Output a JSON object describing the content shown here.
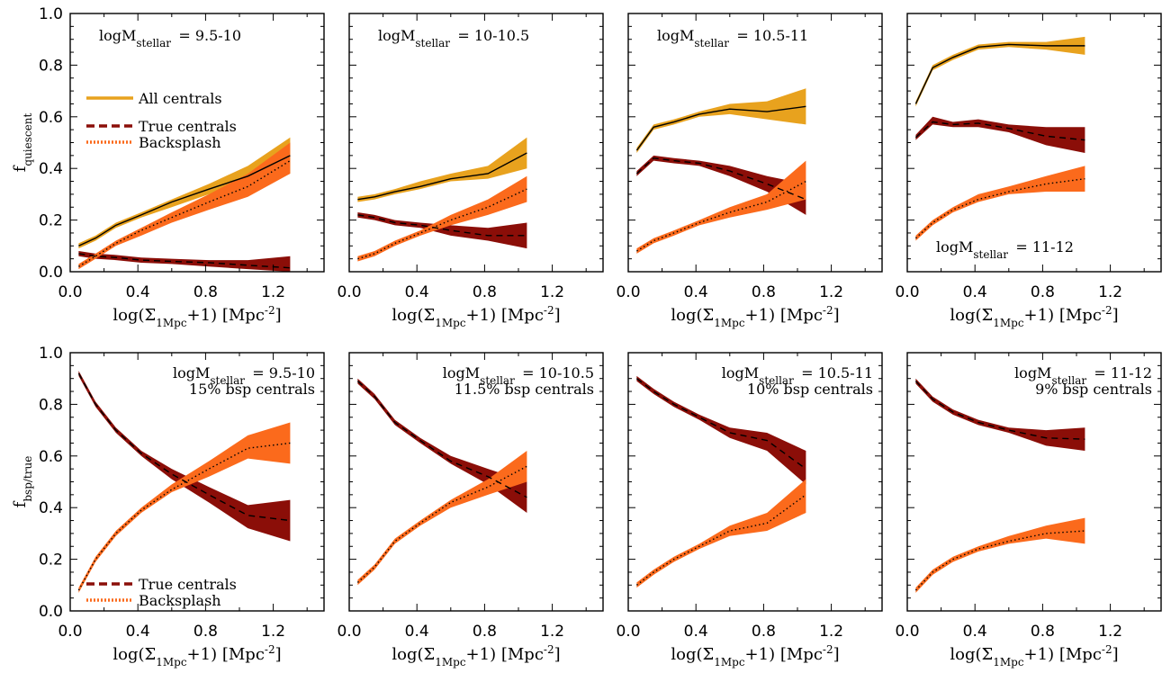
{
  "chart_data": [
    {
      "type": "area",
      "row": 0,
      "col": 0,
      "xlim": [
        0,
        1.5
      ],
      "ylim": [
        0,
        1.0
      ],
      "xticks": [
        "0.0",
        "0.4",
        "0.8",
        "1.2"
      ],
      "yticks": [
        "0.0",
        "0.2",
        "0.4",
        "0.6",
        "0.8",
        "1.0"
      ],
      "xlabel": "log(Σ1Mpc+1) [Mpc-2]",
      "ylabel": "fquiescent",
      "annotations": [
        "logMstellar = 9.5-10"
      ],
      "legend": [
        "All centrals",
        "True centrals",
        "Backsplash"
      ],
      "series": [
        {
          "name": "All centrals",
          "x": [
            0.05,
            0.15,
            0.27,
            0.42,
            0.6,
            0.82,
            1.05,
            1.3
          ],
          "y": [
            0.1,
            0.13,
            0.18,
            0.22,
            0.27,
            0.32,
            0.37,
            0.45
          ],
          "lo": [
            0.09,
            0.12,
            0.17,
            0.21,
            0.25,
            0.3,
            0.34,
            0.38
          ],
          "hi": [
            0.11,
            0.14,
            0.19,
            0.23,
            0.28,
            0.34,
            0.41,
            0.52
          ]
        },
        {
          "name": "True centrals",
          "x": [
            0.05,
            0.15,
            0.27,
            0.42,
            0.6,
            0.82,
            1.05,
            1.3
          ],
          "y": [
            0.07,
            0.06,
            0.055,
            0.045,
            0.04,
            0.035,
            0.025,
            0.015
          ],
          "lo": [
            0.06,
            0.05,
            0.045,
            0.035,
            0.03,
            0.02,
            0.01,
            0.0
          ],
          "hi": [
            0.08,
            0.07,
            0.065,
            0.055,
            0.05,
            0.045,
            0.045,
            0.06
          ]
        },
        {
          "name": "Backsplash",
          "x": [
            0.05,
            0.15,
            0.27,
            0.42,
            0.6,
            0.82,
            1.05,
            1.3
          ],
          "y": [
            0.02,
            0.06,
            0.11,
            0.16,
            0.21,
            0.27,
            0.33,
            0.43
          ],
          "lo": [
            0.01,
            0.05,
            0.1,
            0.14,
            0.19,
            0.24,
            0.29,
            0.38
          ],
          "hi": [
            0.03,
            0.07,
            0.12,
            0.17,
            0.23,
            0.3,
            0.38,
            0.5
          ]
        }
      ]
    },
    {
      "type": "area",
      "row": 0,
      "col": 1,
      "xlim": [
        0,
        1.5
      ],
      "ylim": [
        0,
        1.0
      ],
      "xticks": [
        "0.0",
        "0.4",
        "0.8",
        "1.2"
      ],
      "xlabel": "log(Σ1Mpc+1) [Mpc-2]",
      "annotations": [
        "logMstellar = 10-10.5"
      ],
      "series": [
        {
          "name": "All centrals",
          "x": [
            0.05,
            0.15,
            0.27,
            0.42,
            0.6,
            0.82,
            1.05
          ],
          "y": [
            0.28,
            0.29,
            0.31,
            0.33,
            0.36,
            0.38,
            0.46
          ],
          "lo": [
            0.27,
            0.28,
            0.3,
            0.32,
            0.35,
            0.36,
            0.4
          ],
          "hi": [
            0.29,
            0.3,
            0.32,
            0.35,
            0.38,
            0.41,
            0.52
          ]
        },
        {
          "name": "True centrals",
          "x": [
            0.05,
            0.15,
            0.27,
            0.42,
            0.6,
            0.82,
            1.05
          ],
          "y": [
            0.22,
            0.21,
            0.19,
            0.18,
            0.16,
            0.14,
            0.14
          ],
          "lo": [
            0.21,
            0.2,
            0.18,
            0.17,
            0.14,
            0.12,
            0.09
          ],
          "hi": [
            0.23,
            0.22,
            0.2,
            0.19,
            0.18,
            0.17,
            0.19
          ]
        },
        {
          "name": "Backsplash",
          "x": [
            0.05,
            0.15,
            0.27,
            0.42,
            0.6,
            0.82,
            1.05
          ],
          "y": [
            0.05,
            0.07,
            0.11,
            0.15,
            0.2,
            0.25,
            0.32
          ],
          "lo": [
            0.04,
            0.06,
            0.1,
            0.14,
            0.18,
            0.22,
            0.27
          ],
          "hi": [
            0.06,
            0.08,
            0.12,
            0.16,
            0.22,
            0.28,
            0.37
          ]
        }
      ]
    },
    {
      "type": "area",
      "row": 0,
      "col": 2,
      "xlim": [
        0,
        1.5
      ],
      "ylim": [
        0,
        1.0
      ],
      "xticks": [
        "0.0",
        "0.4",
        "0.8",
        "1.2"
      ],
      "xlabel": "log(Σ1Mpc+1) [Mpc-2]",
      "annotations": [
        "logMstellar = 10.5-11"
      ],
      "series": [
        {
          "name": "All centrals",
          "x": [
            0.05,
            0.15,
            0.27,
            0.42,
            0.6,
            0.82,
            1.05
          ],
          "y": [
            0.47,
            0.56,
            0.58,
            0.61,
            0.63,
            0.62,
            0.64
          ],
          "lo": [
            0.46,
            0.55,
            0.57,
            0.6,
            0.61,
            0.59,
            0.57
          ],
          "hi": [
            0.48,
            0.57,
            0.59,
            0.62,
            0.65,
            0.66,
            0.71
          ]
        },
        {
          "name": "True centrals",
          "x": [
            0.05,
            0.15,
            0.27,
            0.42,
            0.6,
            0.82,
            1.05
          ],
          "y": [
            0.38,
            0.44,
            0.43,
            0.42,
            0.39,
            0.34,
            0.28
          ],
          "lo": [
            0.37,
            0.43,
            0.42,
            0.41,
            0.37,
            0.31,
            0.22
          ],
          "hi": [
            0.39,
            0.45,
            0.44,
            0.43,
            0.41,
            0.37,
            0.34
          ]
        },
        {
          "name": "Backsplash",
          "x": [
            0.05,
            0.15,
            0.27,
            0.42,
            0.6,
            0.82,
            1.05
          ],
          "y": [
            0.08,
            0.12,
            0.15,
            0.19,
            0.23,
            0.27,
            0.35
          ],
          "lo": [
            0.07,
            0.11,
            0.14,
            0.18,
            0.21,
            0.24,
            0.28
          ],
          "hi": [
            0.09,
            0.13,
            0.16,
            0.2,
            0.25,
            0.3,
            0.43
          ]
        }
      ]
    },
    {
      "type": "area",
      "row": 0,
      "col": 3,
      "xlim": [
        0,
        1.5
      ],
      "ylim": [
        0,
        1.0
      ],
      "xticks": [
        "0.0",
        "0.4",
        "0.8",
        "1.2"
      ],
      "xlabel": "log(Σ1Mpc+1) [Mpc-2]",
      "annotations": [
        "logMstellar = 11-12"
      ],
      "series": [
        {
          "name": "All centrals",
          "x": [
            0.05,
            0.15,
            0.27,
            0.42,
            0.6,
            0.82,
            1.05
          ],
          "y": [
            0.65,
            0.79,
            0.83,
            0.87,
            0.88,
            0.875,
            0.875
          ],
          "lo": [
            0.64,
            0.78,
            0.82,
            0.86,
            0.87,
            0.86,
            0.84
          ],
          "hi": [
            0.66,
            0.8,
            0.84,
            0.88,
            0.89,
            0.89,
            0.91
          ]
        },
        {
          "name": "True centrals",
          "x": [
            0.05,
            0.15,
            0.27,
            0.42,
            0.6,
            0.82,
            1.05
          ],
          "y": [
            0.52,
            0.58,
            0.57,
            0.575,
            0.555,
            0.525,
            0.51
          ],
          "lo": [
            0.51,
            0.57,
            0.56,
            0.56,
            0.54,
            0.49,
            0.46
          ],
          "hi": [
            0.53,
            0.6,
            0.58,
            0.59,
            0.57,
            0.56,
            0.56
          ]
        },
        {
          "name": "Backsplash",
          "x": [
            0.05,
            0.15,
            0.27,
            0.42,
            0.6,
            0.82,
            1.05
          ],
          "y": [
            0.13,
            0.19,
            0.24,
            0.28,
            0.31,
            0.34,
            0.36
          ],
          "lo": [
            0.12,
            0.18,
            0.23,
            0.27,
            0.3,
            0.31,
            0.31
          ],
          "hi": [
            0.14,
            0.2,
            0.25,
            0.3,
            0.33,
            0.37,
            0.41
          ]
        }
      ]
    },
    {
      "type": "area",
      "row": 1,
      "col": 0,
      "xlim": [
        0,
        1.5
      ],
      "ylim": [
        0,
        1.0
      ],
      "xticks": [
        "0.0",
        "0.4",
        "0.8",
        "1.2"
      ],
      "yticks": [
        "0.0",
        "0.2",
        "0.4",
        "0.6",
        "0.8",
        "1.0"
      ],
      "xlabel": "log(Σ1Mpc+1) [Mpc-2]",
      "ylabel": "fbsp/true",
      "annotations": [
        "logMstellar = 9.5-10",
        "15% bsp centrals"
      ],
      "legend": [
        "True centrals",
        "Backsplash"
      ],
      "series": [
        {
          "name": "True centrals",
          "x": [
            0.05,
            0.15,
            0.27,
            0.42,
            0.6,
            0.82,
            1.05,
            1.3
          ],
          "y": [
            0.92,
            0.8,
            0.7,
            0.61,
            0.53,
            0.45,
            0.37,
            0.35
          ],
          "lo": [
            0.91,
            0.79,
            0.69,
            0.6,
            0.51,
            0.42,
            0.32,
            0.27
          ],
          "hi": [
            0.93,
            0.81,
            0.71,
            0.62,
            0.55,
            0.48,
            0.41,
            0.43
          ]
        },
        {
          "name": "Backsplash",
          "x": [
            0.05,
            0.15,
            0.27,
            0.42,
            0.6,
            0.82,
            1.05,
            1.3
          ],
          "y": [
            0.08,
            0.2,
            0.3,
            0.39,
            0.47,
            0.55,
            0.63,
            0.65
          ],
          "lo": [
            0.07,
            0.19,
            0.29,
            0.38,
            0.46,
            0.52,
            0.59,
            0.57
          ],
          "hi": [
            0.09,
            0.21,
            0.31,
            0.4,
            0.49,
            0.58,
            0.68,
            0.73
          ]
        }
      ]
    },
    {
      "type": "area",
      "row": 1,
      "col": 1,
      "xlim": [
        0,
        1.5
      ],
      "ylim": [
        0,
        1.0
      ],
      "xticks": [
        "0.0",
        "0.4",
        "0.8",
        "1.2"
      ],
      "xlabel": "log(Σ1Mpc+1) [Mpc-2]",
      "annotations": [
        "logMstellar = 10-10.5",
        "11.5% bsp centrals"
      ],
      "series": [
        {
          "name": "True centrals",
          "x": [
            0.05,
            0.15,
            0.27,
            0.42,
            0.6,
            0.82,
            1.05
          ],
          "y": [
            0.89,
            0.83,
            0.73,
            0.66,
            0.58,
            0.52,
            0.44
          ],
          "lo": [
            0.88,
            0.82,
            0.72,
            0.65,
            0.57,
            0.49,
            0.38
          ],
          "hi": [
            0.9,
            0.84,
            0.74,
            0.67,
            0.6,
            0.55,
            0.5
          ]
        },
        {
          "name": "Backsplash",
          "x": [
            0.05,
            0.15,
            0.27,
            0.42,
            0.6,
            0.82,
            1.05
          ],
          "y": [
            0.11,
            0.17,
            0.27,
            0.34,
            0.42,
            0.48,
            0.56
          ],
          "lo": [
            0.1,
            0.16,
            0.26,
            0.33,
            0.4,
            0.45,
            0.5
          ],
          "hi": [
            0.12,
            0.18,
            0.28,
            0.35,
            0.43,
            0.51,
            0.62
          ]
        }
      ]
    },
    {
      "type": "area",
      "row": 1,
      "col": 2,
      "xlim": [
        0,
        1.5
      ],
      "ylim": [
        0,
        1.0
      ],
      "xticks": [
        "0.0",
        "0.4",
        "0.8",
        "1.2"
      ],
      "xlabel": "log(Σ1Mpc+1) [Mpc-2]",
      "annotations": [
        "logMstellar = 10.5-11",
        "10% bsp centrals"
      ],
      "series": [
        {
          "name": "True centrals",
          "x": [
            0.05,
            0.15,
            0.27,
            0.42,
            0.6,
            0.82,
            1.05
          ],
          "y": [
            0.9,
            0.85,
            0.8,
            0.75,
            0.69,
            0.66,
            0.55
          ],
          "lo": [
            0.89,
            0.84,
            0.79,
            0.74,
            0.67,
            0.62,
            0.49
          ],
          "hi": [
            0.91,
            0.86,
            0.81,
            0.76,
            0.71,
            0.69,
            0.62
          ]
        },
        {
          "name": "Backsplash",
          "x": [
            0.05,
            0.15,
            0.27,
            0.42,
            0.6,
            0.82,
            1.05
          ],
          "y": [
            0.1,
            0.15,
            0.2,
            0.25,
            0.31,
            0.34,
            0.45
          ],
          "lo": [
            0.09,
            0.14,
            0.19,
            0.24,
            0.29,
            0.31,
            0.38
          ],
          "hi": [
            0.11,
            0.16,
            0.21,
            0.26,
            0.33,
            0.38,
            0.51
          ]
        }
      ]
    },
    {
      "type": "area",
      "row": 1,
      "col": 3,
      "xlim": [
        0,
        1.5
      ],
      "ylim": [
        0,
        1.0
      ],
      "xticks": [
        "0.0",
        "0.4",
        "0.8",
        "1.2"
      ],
      "xlabel": "log(Σ1Mpc+1) [Mpc-2]",
      "annotations": [
        "logMstellar = 11-12",
        "9% bsp centrals"
      ],
      "series": [
        {
          "name": "True centrals",
          "x": [
            0.05,
            0.15,
            0.27,
            0.42,
            0.6,
            0.82,
            1.05
          ],
          "y": [
            0.89,
            0.82,
            0.77,
            0.73,
            0.7,
            0.67,
            0.665
          ],
          "lo": [
            0.88,
            0.81,
            0.76,
            0.72,
            0.69,
            0.64,
            0.62
          ],
          "hi": [
            0.9,
            0.83,
            0.78,
            0.74,
            0.71,
            0.7,
            0.71
          ]
        },
        {
          "name": "Backsplash",
          "x": [
            0.05,
            0.15,
            0.27,
            0.42,
            0.6,
            0.82,
            1.05
          ],
          "y": [
            0.08,
            0.15,
            0.2,
            0.24,
            0.27,
            0.3,
            0.31
          ],
          "lo": [
            0.07,
            0.14,
            0.19,
            0.23,
            0.26,
            0.28,
            0.26
          ],
          "hi": [
            0.09,
            0.16,
            0.21,
            0.25,
            0.29,
            0.33,
            0.36
          ]
        }
      ]
    }
  ],
  "style": {
    "All centrals": {
      "band": "#e8a21e",
      "line": "#000000",
      "dash": "none"
    },
    "True centrals": {
      "band": "#8b0e08",
      "line": "#000000",
      "dash": "7,5"
    },
    "Backsplash": {
      "band": "#fb6a1c",
      "line": "#000000",
      "dash": "1.5,3"
    }
  }
}
